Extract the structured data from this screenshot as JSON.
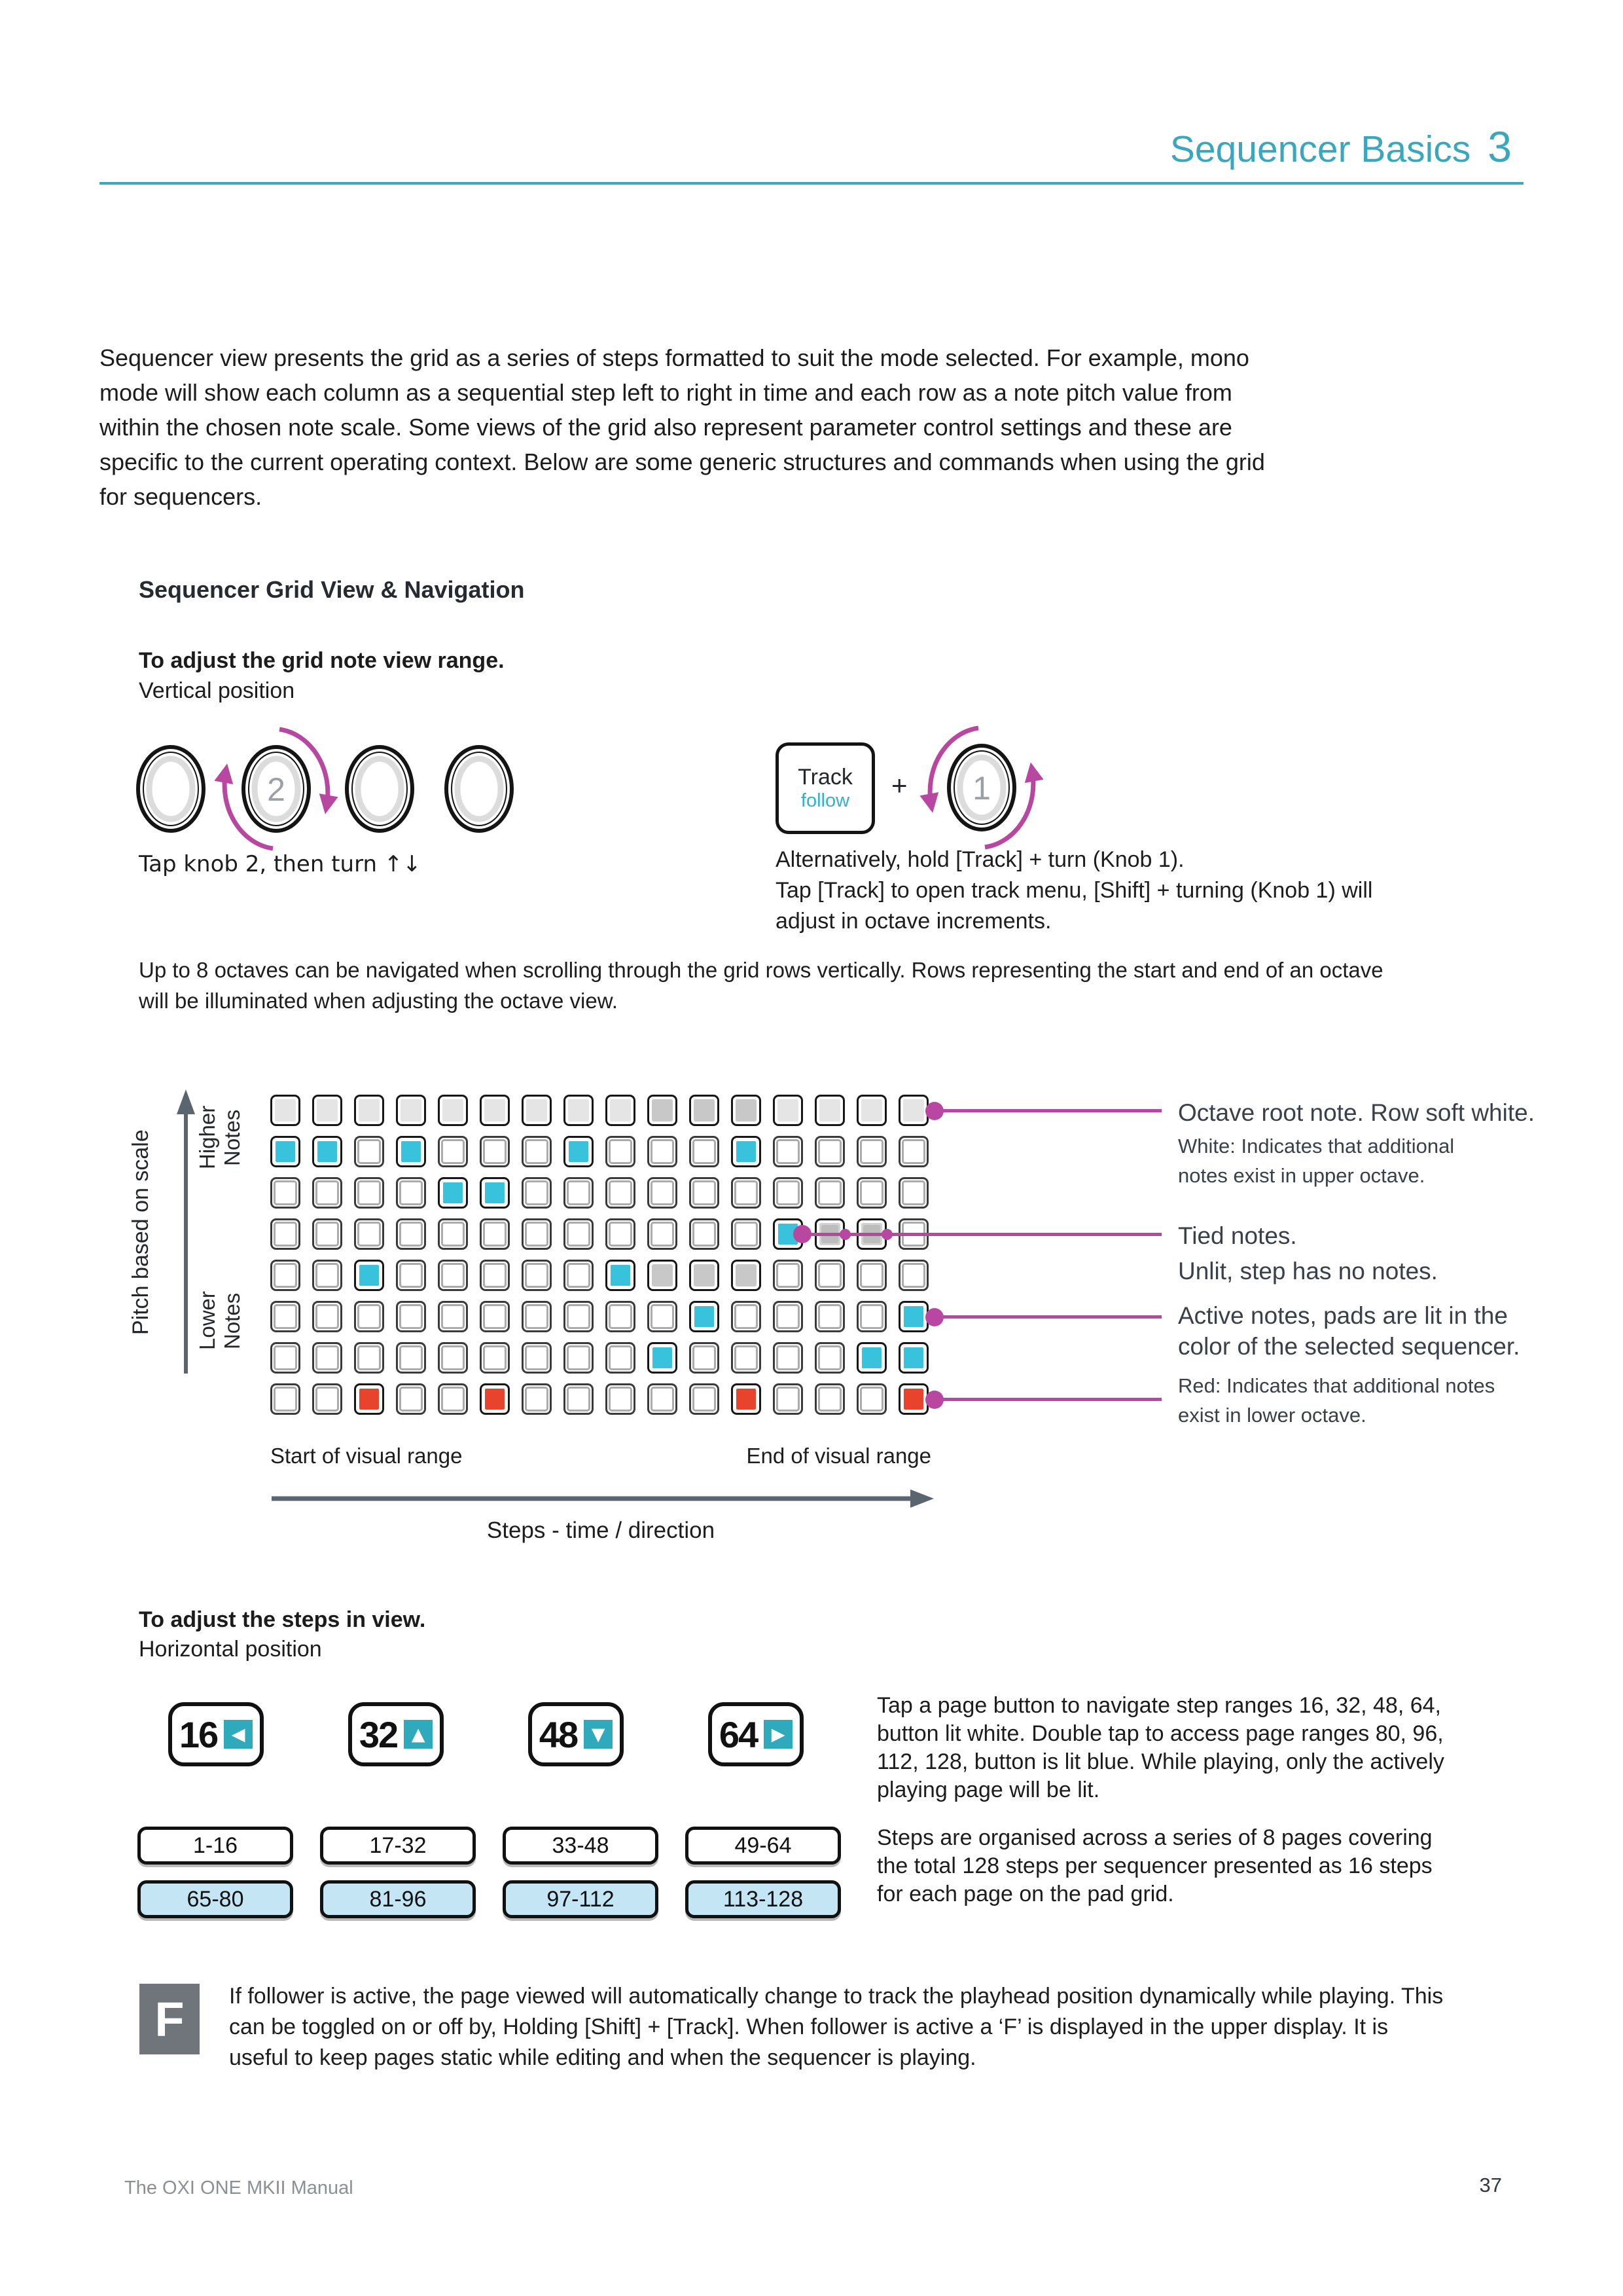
{
  "header": {
    "title": "Sequencer Basics",
    "chapter": "3"
  },
  "intro_lines": [
    "Sequencer view presents the grid as a series of steps formatted to suit the mode selected. For example, mono",
    "mode will show each column as a sequential step left to right in time and each row as a note pitch value from",
    "within the chosen note scale. Some views of the grid also represent parameter control settings and these are",
    "specific to the current operating context. Below are some generic structures and commands when using the grid",
    "for sequencers."
  ],
  "section": {
    "heading": "Sequencer Grid View & Navigation"
  },
  "vertical_adjust": {
    "title": "To adjust the grid note view range.",
    "subtitle": "Vertical position",
    "knob2_label": "2",
    "caption": "Tap knob 2, then turn ↑↓",
    "track_button": {
      "top": "Track",
      "bottom": "follow"
    },
    "plus": "+",
    "alt_knob_label": "1",
    "alt_lines": [
      "Alternatively, hold [Track] + turn (Knob 1).",
      "Tap [Track] to open track menu, [Shift] + turning (Knob 1) will",
      "adjust in octave increments."
    ]
  },
  "octave_note_lines": [
    "Up to 8 octaves can be navigated when scrolling through the grid rows vertically. Rows representing the start and end of an octave",
    "will be illuminated when adjusting the octave view."
  ],
  "grid_diagram": {
    "axis": {
      "pitch": "Pitch based on scale",
      "higher": "Higher Notes",
      "lower": "Lower Notes",
      "start": "Start of visual range",
      "end": "End of visual range",
      "steps": "Steps - time / direction"
    },
    "cell_types": {
      "S": "soft white (octave root row)",
      "D": "white - additional notes in upper octave",
      "O": "unlit, no notes",
      "C": "cyan active note",
      "R": "red - additional notes in lower octave",
      "T": "tied note"
    },
    "rows": [
      "SSSSSSSSSDDDSSSS",
      "CCOCOOOCOOOCOOOO",
      "OOOOCCOOOOOOOOOO",
      "OOOOOOOOOOOOCTTO",
      "OOCOOOOOCDDDOOOO",
      "OOOOOOOOOOCOOOOC",
      "OOOOOOOOOCOOOOCC",
      "OOROOROOOOOROOOR"
    ],
    "annotations": {
      "octave_root": "Octave root note. Row soft white.",
      "upper_octave_lines": [
        "White: Indicates that additional",
        "notes exist in upper octave."
      ],
      "tied": "Tied notes.",
      "unlit": "Unlit, step has no notes.",
      "active_lines": [
        "Active notes, pads are lit in the",
        "color of the selected sequencer."
      ],
      "lower_octave_lines": [
        "Red: Indicates that additional notes",
        "exist in lower octave."
      ]
    }
  },
  "horizontal_adjust": {
    "title": "To adjust the steps in view.",
    "subtitle": "Horizontal position",
    "page_buttons": [
      {
        "label": "16",
        "arrow": "◀"
      },
      {
        "label": "32",
        "arrow": "▲"
      },
      {
        "label": "48",
        "arrow": "▼"
      },
      {
        "label": "64",
        "arrow": "▶"
      }
    ],
    "page_text_lines": [
      "Tap a page button to navigate step ranges 16, 32, 48, 64,",
      "button lit white. Double tap to access page ranges 80, 96,",
      "112, 128, button is lit blue. While playing, only the actively",
      "playing page will be lit."
    ],
    "range_rows": [
      {
        "style": "white",
        "labels": [
          "1-16",
          "17-32",
          "33-48",
          "49-64"
        ]
      },
      {
        "style": "blue",
        "labels": [
          "65-80",
          "81-96",
          "97-112",
          "113-128"
        ]
      }
    ],
    "range_text_lines": [
      "Steps are organised across a series of 8 pages covering",
      "the total 128 steps per sequencer presented as 16 steps",
      "for each page on the pad grid."
    ]
  },
  "follower": {
    "icon": "F",
    "lines": [
      "If follower is active, the page viewed will automatically change to track the playhead position dynamically while playing. This",
      "can be toggled on or off by, Holding [Shift] + [Track]. When follower is active a ‘F’ is displayed in the upper display. It is",
      "useful to keep pages static while editing and when the sequencer is playing."
    ]
  },
  "footer": {
    "manual": "The OXI ONE MKII Manual",
    "page": "37"
  },
  "colors": {
    "accent_teal": "#3BA7BC",
    "pad_cyan": "#38C2DB",
    "pad_red": "#E8442D",
    "connector_magenta": "#B847A1",
    "range_blue": "#C3E5F4",
    "page_btn_teal": "#2FA9BC",
    "follower_gray": "#70757C"
  }
}
